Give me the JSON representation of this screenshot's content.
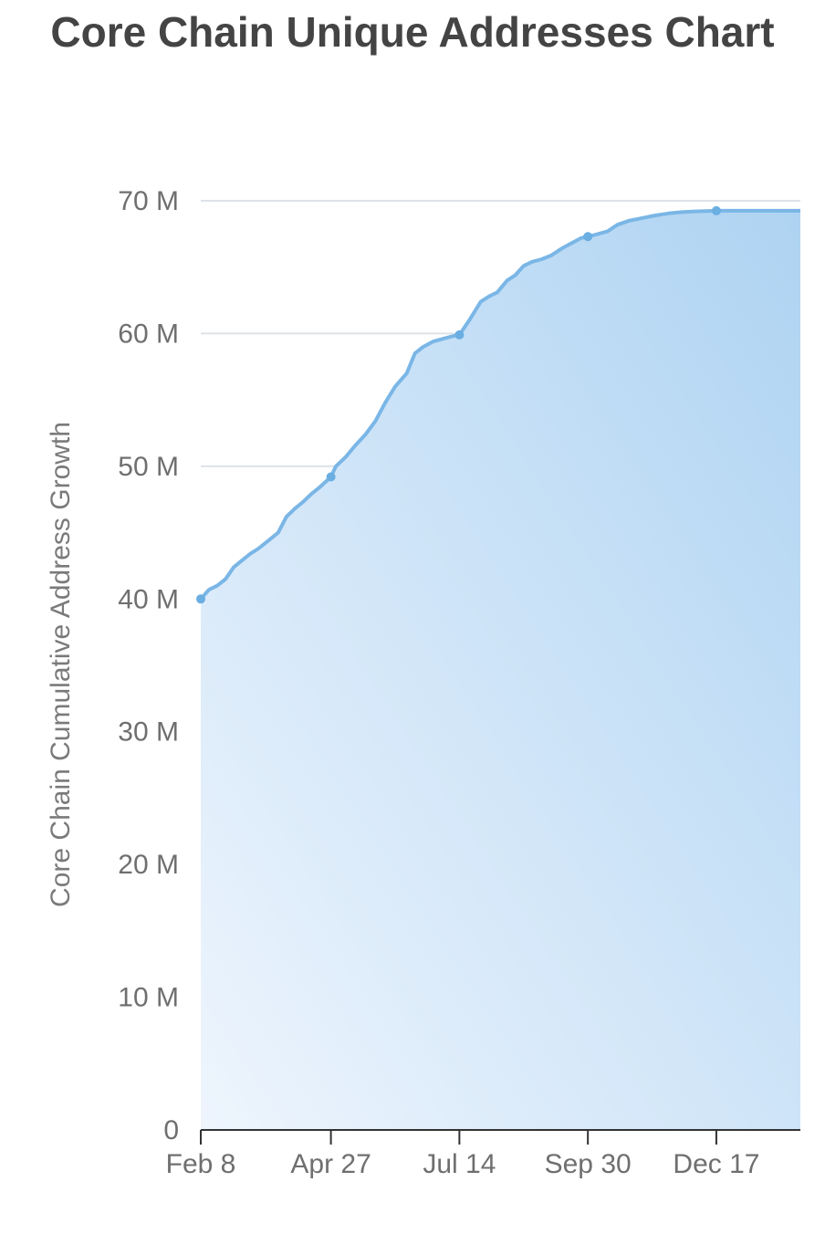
{
  "chart_data": {
    "type": "area",
    "title": "Core Chain Unique Addresses Chart",
    "ylabel": "Core Chain Cumulative Address Growth",
    "xlabel": "",
    "ylim": [
      0,
      70000000
    ],
    "y_ticks": [
      {
        "value": 0,
        "label": "0"
      },
      {
        "value": 10000000,
        "label": "10 M"
      },
      {
        "value": 20000000,
        "label": "20 M"
      },
      {
        "value": 30000000,
        "label": "30 M"
      },
      {
        "value": 40000000,
        "label": "40 M"
      },
      {
        "value": 50000000,
        "label": "50 M"
      },
      {
        "value": 60000000,
        "label": "60 M"
      },
      {
        "value": 70000000,
        "label": "70 M"
      }
    ],
    "x_ticks": [
      {
        "day": 0,
        "label": "Feb 8"
      },
      {
        "day": 79,
        "label": "Apr 27"
      },
      {
        "day": 157,
        "label": "Jul 14"
      },
      {
        "day": 235,
        "label": "Sep 30"
      },
      {
        "day": 313,
        "label": "Dec 17"
      }
    ],
    "xlim_days": [
      0,
      364
    ],
    "grid": true,
    "color": "#7ab6e6",
    "series": [
      {
        "points": [
          [
            0,
            40000000
          ],
          [
            5,
            40700000
          ],
          [
            10,
            41000000
          ],
          [
            15,
            41500000
          ],
          [
            20,
            42400000
          ],
          [
            25,
            42900000
          ],
          [
            30,
            43400000
          ],
          [
            35,
            43800000
          ],
          [
            40,
            44300000
          ],
          [
            47,
            45000000
          ],
          [
            52,
            46200000
          ],
          [
            57,
            46800000
          ],
          [
            62,
            47300000
          ],
          [
            67,
            47900000
          ],
          [
            72,
            48400000
          ],
          [
            79,
            49200000
          ],
          [
            82,
            50000000
          ],
          [
            88,
            50700000
          ],
          [
            94,
            51600000
          ],
          [
            100,
            52400000
          ],
          [
            106,
            53400000
          ],
          [
            112,
            54800000
          ],
          [
            118,
            56000000
          ],
          [
            125,
            57000000
          ],
          [
            130,
            58500000
          ],
          [
            135,
            59000000
          ],
          [
            141,
            59400000
          ],
          [
            147,
            59600000
          ],
          [
            153,
            59800000
          ],
          [
            157,
            59900000
          ],
          [
            163,
            61000000
          ],
          [
            170,
            62400000
          ],
          [
            175,
            62800000
          ],
          [
            180,
            63100000
          ],
          [
            186,
            64000000
          ],
          [
            191,
            64400000
          ],
          [
            196,
            65100000
          ],
          [
            201,
            65400000
          ],
          [
            207,
            65600000
          ],
          [
            213,
            65900000
          ],
          [
            219,
            66400000
          ],
          [
            225,
            66800000
          ],
          [
            231,
            67200000
          ],
          [
            235,
            67300000
          ],
          [
            241,
            67500000
          ],
          [
            247,
            67700000
          ],
          [
            253,
            68200000
          ],
          [
            260,
            68500000
          ],
          [
            268,
            68700000
          ],
          [
            276,
            68900000
          ],
          [
            284,
            69050000
          ],
          [
            292,
            69150000
          ],
          [
            300,
            69200000
          ],
          [
            313,
            69250000
          ],
          [
            330,
            69250000
          ],
          [
            345,
            69250000
          ],
          [
            364,
            69250000
          ]
        ],
        "markers_at_days": [
          0,
          79,
          157,
          235,
          313
        ]
      }
    ]
  }
}
